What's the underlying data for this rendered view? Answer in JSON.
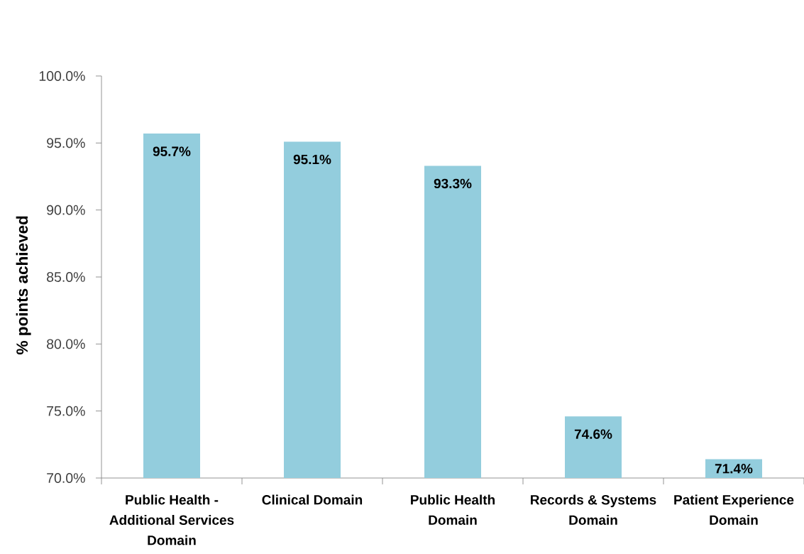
{
  "chart_data": {
    "type": "bar",
    "ylabel": "% points achieved",
    "categories": [
      "Public Health - Additional Services Domain",
      "Clinical Domain",
      "Public Health Domain",
      "Records & Systems Domain",
      "Patient Experience Domain"
    ],
    "values": [
      95.7,
      95.1,
      93.3,
      74.6,
      71.4
    ],
    "value_labels": [
      "95.7%",
      "95.1%",
      "93.3%",
      "74.6%",
      "71.4%"
    ],
    "color": "#93cddd",
    "ylim": [
      70,
      100
    ],
    "yticks": [
      {
        "value": 70,
        "label": "70.0%"
      },
      {
        "value": 75,
        "label": "75.0%"
      },
      {
        "value": 80,
        "label": "80.0%"
      },
      {
        "value": 85,
        "label": "85.0%"
      },
      {
        "value": 90,
        "label": "90.0%"
      },
      {
        "value": 95,
        "label": "95.0%"
      },
      {
        "value": 100,
        "label": "100.0%"
      }
    ]
  }
}
